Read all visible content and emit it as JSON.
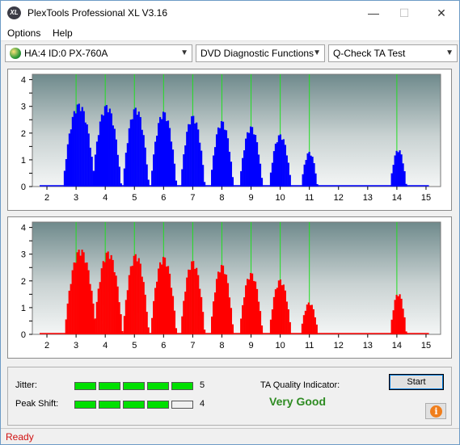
{
  "window": {
    "title": "PlexTools Professional XL V3.16",
    "icon_text": "XL"
  },
  "menu": [
    "Options",
    "Help"
  ],
  "toolbar": {
    "drive": "HA:4 ID:0  PX-760A",
    "function": "DVD Diagnostic Functions",
    "test": "Q-Check TA Test"
  },
  "chart_data": [
    {
      "type": "bar",
      "series_color": "#0000ff",
      "x_ticks": [
        2,
        3,
        4,
        5,
        6,
        7,
        8,
        9,
        10,
        11,
        12,
        13,
        14,
        15
      ],
      "y_ticks": [
        0,
        0.5,
        1,
        1.5,
        2,
        2.5,
        3,
        3.5,
        4
      ],
      "y_tick_labels": [
        "0",
        "",
        "1",
        "",
        "2",
        "",
        "3",
        "",
        "4"
      ],
      "ylim": [
        0,
        4.2
      ],
      "xlim": [
        1.5,
        15.5
      ],
      "marker_lines": [
        3,
        4,
        5,
        6,
        7,
        8,
        9,
        10,
        11,
        14
      ],
      "peaks": [
        {
          "center": 3.1,
          "height": 3.1,
          "width": 0.55
        },
        {
          "center": 4.05,
          "height": 3.05,
          "width": 0.5
        },
        {
          "center": 5.05,
          "height": 2.95,
          "width": 0.45
        },
        {
          "center": 6.0,
          "height": 2.8,
          "width": 0.45
        },
        {
          "center": 7.0,
          "height": 2.65,
          "width": 0.42
        },
        {
          "center": 8.0,
          "height": 2.45,
          "width": 0.4
        },
        {
          "center": 9.0,
          "height": 2.25,
          "width": 0.4
        },
        {
          "center": 10.0,
          "height": 1.95,
          "width": 0.38
        },
        {
          "center": 11.0,
          "height": 1.3,
          "width": 0.28
        },
        {
          "center": 14.05,
          "height": 1.4,
          "width": 0.28
        }
      ]
    },
    {
      "type": "bar",
      "series_color": "#ff0000",
      "x_ticks": [
        2,
        3,
        4,
        5,
        6,
        7,
        8,
        9,
        10,
        11,
        12,
        13,
        14,
        15
      ],
      "y_ticks": [
        0,
        0.5,
        1,
        1.5,
        2,
        2.5,
        3,
        3.5,
        4
      ],
      "y_tick_labels": [
        "0",
        "",
        "1",
        "",
        "2",
        "",
        "3",
        "",
        "4"
      ],
      "ylim": [
        0,
        4.2
      ],
      "xlim": [
        1.5,
        15.5
      ],
      "marker_lines": [
        3,
        4,
        5,
        6,
        7,
        8,
        9,
        10,
        11,
        14
      ],
      "peaks": [
        {
          "center": 3.15,
          "height": 3.2,
          "width": 0.55
        },
        {
          "center": 4.1,
          "height": 3.1,
          "width": 0.5
        },
        {
          "center": 5.05,
          "height": 3.0,
          "width": 0.45
        },
        {
          "center": 6.0,
          "height": 2.9,
          "width": 0.45
        },
        {
          "center": 7.0,
          "height": 2.75,
          "width": 0.42
        },
        {
          "center": 8.0,
          "height": 2.6,
          "width": 0.4
        },
        {
          "center": 9.0,
          "height": 2.3,
          "width": 0.4
        },
        {
          "center": 10.0,
          "height": 2.05,
          "width": 0.38
        },
        {
          "center": 11.0,
          "height": 1.2,
          "width": 0.3
        },
        {
          "center": 14.05,
          "height": 1.55,
          "width": 0.28
        }
      ]
    }
  ],
  "metrics": {
    "jitter_label": "Jitter:",
    "jitter_value": "5",
    "jitter_level": 5,
    "peak_shift_label": "Peak Shift:",
    "peak_shift_value": "4",
    "peak_shift_level": 4,
    "meter_segments": 5,
    "ta_label": "TA Quality Indicator:",
    "ta_value": "Very Good",
    "ta_color": "#2e8b22"
  },
  "buttons": {
    "start": "Start"
  },
  "status": "Ready"
}
